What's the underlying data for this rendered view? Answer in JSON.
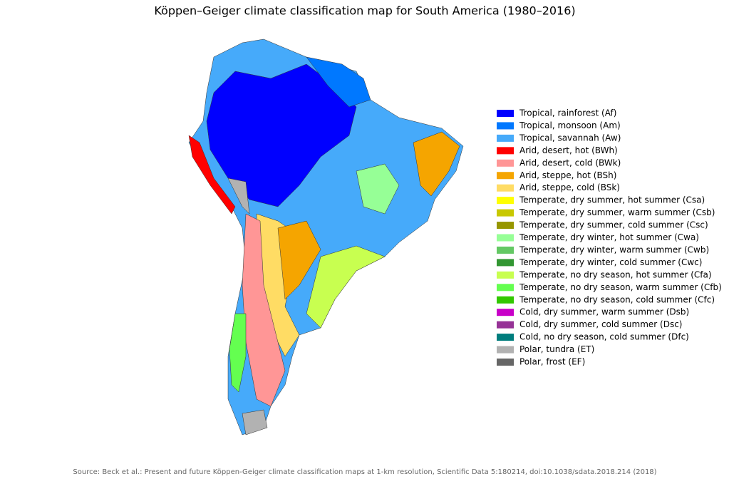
{
  "title": "Köppen–Geiger climate classification map for South America (1980–2016)",
  "legend": [
    {
      "label": "Tropical, rainforest (Af)",
      "color": "#0000ff"
    },
    {
      "label": "Tropical, monsoon (Am)",
      "color": "#0078ff"
    },
    {
      "label": "Tropical, savannah (Aw)",
      "color": "#46aafa"
    },
    {
      "label": "Arid, desert, hot (BWh)",
      "color": "#ff0000"
    },
    {
      "label": "Arid, desert, cold (BWk)",
      "color": "#ff9696"
    },
    {
      "label": "Arid, steppe, hot (BSh)",
      "color": "#f5a500"
    },
    {
      "label": "Arid, steppe, cold (BSk)",
      "color": "#ffdc64"
    },
    {
      "label": "Temperate, dry summer, hot summer (Csa)",
      "color": "#ffff00"
    },
    {
      "label": "Temperate, dry summer, warm summer (Csb)",
      "color": "#c8c800"
    },
    {
      "label": "Temperate, dry summer, cold summer (Csc)",
      "color": "#969600"
    },
    {
      "label": "Temperate, dry winter, hot summer (Cwa)",
      "color": "#96ff96"
    },
    {
      "label": "Temperate, dry winter, warm summer (Cwb)",
      "color": "#64c864"
    },
    {
      "label": "Temperate, dry winter, cold summer (Cwc)",
      "color": "#329632"
    },
    {
      "label": "Temperate, no dry season, hot summer (Cfa)",
      "color": "#c8ff50"
    },
    {
      "label": "Temperate, no dry season, warm summer (Cfb)",
      "color": "#64ff50"
    },
    {
      "label": "Temperate, no dry season, cold summer (Cfc)",
      "color": "#32c800"
    },
    {
      "label": "Cold, dry summer, warm summer (Dsb)",
      "color": "#c800c8"
    },
    {
      "label": "Cold, dry summer, cold summer (Dsc)",
      "color": "#963296"
    },
    {
      "label": "Cold, no dry season, cold summer (Dfc)",
      "color": "#007d7d"
    },
    {
      "label": "Polar, tundra (ET)",
      "color": "#b2b2b2"
    },
    {
      "label": "Polar, frost (EF)",
      "color": "#666666"
    }
  ],
  "source": "Source: Beck et al.: Present and future Köppen-Geiger climate classification maps at 1-km resolution, Scientific Data 5:180214, doi:10.1038/sdata.2018.214 (2018)"
}
